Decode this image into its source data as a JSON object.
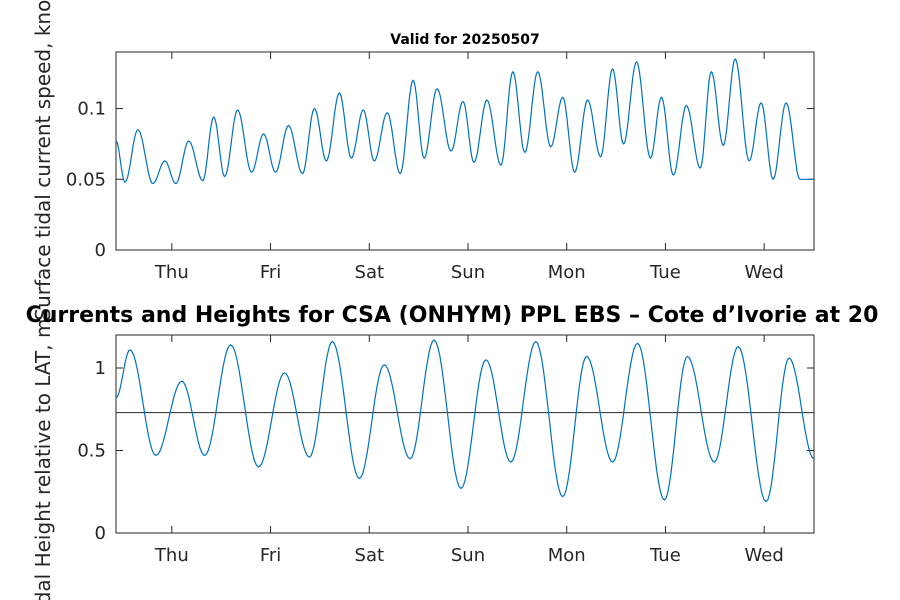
{
  "chart_data": [
    {
      "type": "line",
      "title": "Valid for 20250507",
      "ylabel": "Surface tidal current speed, knots",
      "xlabel": "",
      "x_ticks": [
        "Thu",
        "Fri",
        "Sat",
        "Sun",
        "Mon",
        "Tue",
        "Wed"
      ],
      "y_ticks": [
        "0",
        "0.05",
        "0.1"
      ],
      "ylim": [
        0,
        0.14
      ],
      "xlim_days": [
        0,
        7
      ],
      "grid": false,
      "line_color": "#0072BD",
      "series": [
        {
          "x_days": [
            0,
            0.09,
            0.22,
            0.37,
            0.49,
            0.6,
            0.73,
            0.87,
            0.98,
            1.09,
            1.22,
            1.36,
            1.48,
            1.6,
            1.73,
            1.87,
            1.99,
            2.11,
            2.24,
            2.36,
            2.48,
            2.59,
            2.72,
            2.85,
            2.98,
            3.09,
            3.22,
            3.36,
            3.48,
            3.59,
            3.72,
            3.86,
            3.98,
            4.1,
            4.23,
            4.36,
            4.48,
            4.6,
            4.73,
            4.86,
            4.98,
            5.09,
            5.22,
            5.36,
            5.47,
            5.59,
            5.72,
            5.86,
            5.97,
            6.09,
            6.21,
            6.35,
            6.47,
            6.59,
            6.72,
            6.86,
            7.0
          ],
          "values": [
            0.077,
            0.048,
            0.085,
            0.047,
            0.063,
            0.047,
            0.077,
            0.049,
            0.094,
            0.052,
            0.099,
            0.055,
            0.082,
            0.055,
            0.088,
            0.054,
            0.1,
            0.063,
            0.111,
            0.065,
            0.099,
            0.063,
            0.097,
            0.054,
            0.12,
            0.065,
            0.114,
            0.07,
            0.105,
            0.062,
            0.106,
            0.06,
            0.126,
            0.069,
            0.126,
            0.073,
            0.108,
            0.055,
            0.106,
            0.066,
            0.128,
            0.075,
            0.133,
            0.065,
            0.108,
            0.053,
            0.102,
            0.058,
            0.126,
            0.074,
            0.135,
            0.063,
            0.104,
            0.05,
            0.104,
            0.05,
            0.05
          ]
        }
      ]
    },
    {
      "type": "line",
      "title": "Currents and Heights for CSA (ONHYM) PPL EBS  – Cote d’Ivorie at 20",
      "ylabel": "Tidal Height relative to LAT, m",
      "xlabel": "",
      "x_ticks": [
        "Thu",
        "Fri",
        "Sat",
        "Sun",
        "Mon",
        "Tue",
        "Wed"
      ],
      "y_ticks": [
        "0",
        "0.5",
        "1"
      ],
      "ylim": [
        0,
        1.2
      ],
      "xlim_days": [
        0,
        7
      ],
      "grid": false,
      "line_color": "#0072BD",
      "reference_line": 0.73,
      "reference_color": "#404040",
      "series": [
        {
          "x_days": [
            0,
            0.14,
            0.4,
            0.66,
            0.89,
            1.15,
            1.43,
            1.69,
            1.94,
            2.17,
            2.44,
            2.69,
            2.95,
            3.19,
            3.46,
            3.71,
            3.96,
            4.21,
            4.48,
            4.72,
            4.98,
            5.23,
            5.5,
            5.73,
            6.0,
            6.24,
            6.52,
            6.75,
            7.0
          ],
          "values": [
            0.82,
            1.11,
            0.47,
            0.92,
            0.47,
            1.14,
            0.4,
            0.97,
            0.46,
            1.16,
            0.33,
            1.02,
            0.45,
            1.17,
            0.27,
            1.05,
            0.43,
            1.16,
            0.22,
            1.07,
            0.43,
            1.15,
            0.2,
            1.07,
            0.43,
            1.13,
            0.19,
            1.06,
            0.45
          ]
        }
      ]
    }
  ]
}
